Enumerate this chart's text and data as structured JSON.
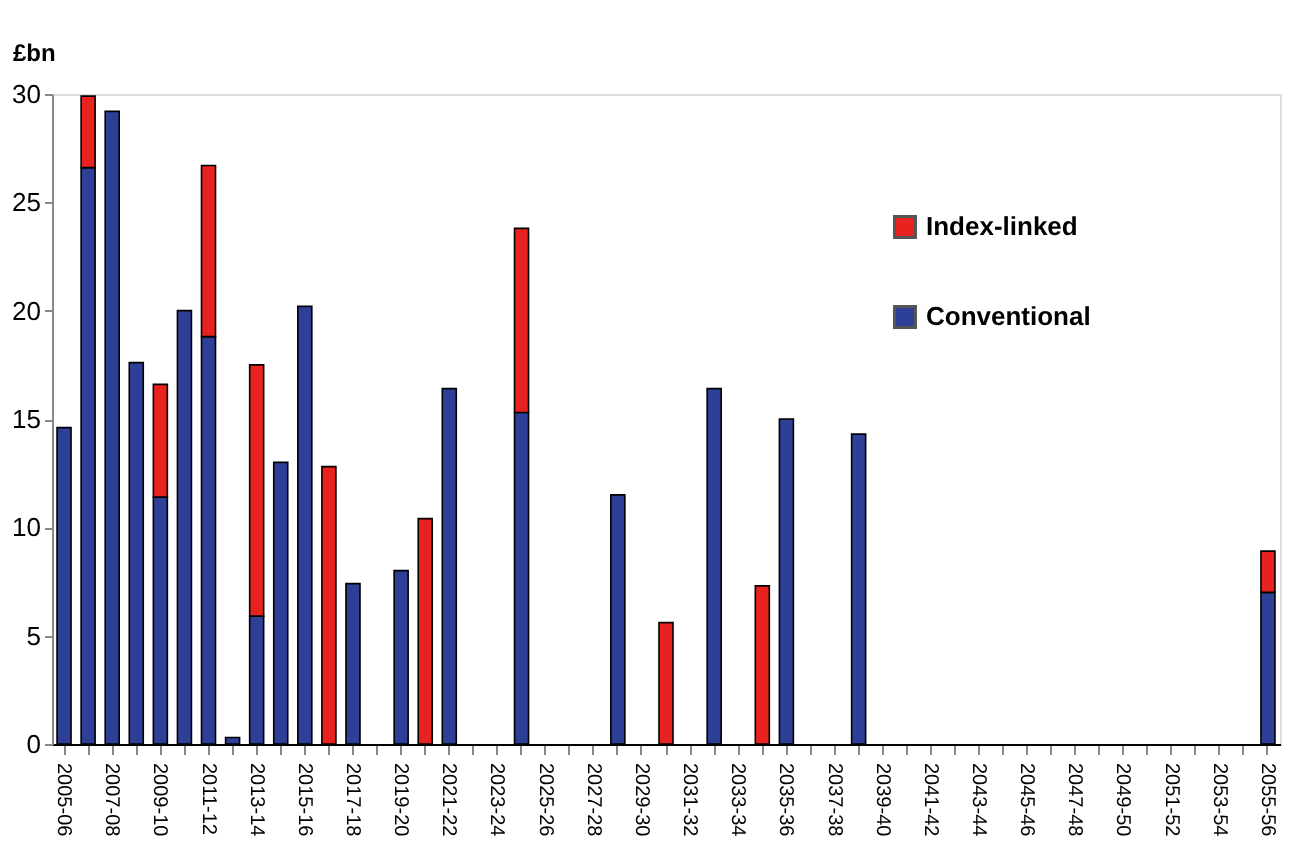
{
  "chart_data": {
    "type": "bar",
    "stacked": true,
    "ylabel": "£bn",
    "categories": [
      "2005-06",
      null,
      "2007-08",
      null,
      "2009-10",
      null,
      "2011-12",
      null,
      "2013-14",
      null,
      "2015-16",
      null,
      "2017-18",
      null,
      "2019-20",
      null,
      "2021-22",
      null,
      "2023-24",
      null,
      "2025-26",
      null,
      "2027-28",
      null,
      "2029-30",
      null,
      "2031-32",
      null,
      "2033-34",
      null,
      "2035-36",
      null,
      "2037-38",
      null,
      "2039-40",
      null,
      "2041-42",
      null,
      "2043-44",
      null,
      "2045-46",
      null,
      "2047-48",
      null,
      "2049-50",
      null,
      "2051-52",
      null,
      "2053-54",
      null,
      "2055-56"
    ],
    "series": [
      {
        "name": "Conventional",
        "color": "#2e3f98",
        "values": [
          14.6,
          26.6,
          29.2,
          17.6,
          11.4,
          20.0,
          18.8,
          0.3,
          5.9,
          13.0,
          20.2,
          null,
          7.4,
          null,
          8.0,
          null,
          16.4,
          null,
          null,
          15.3,
          null,
          null,
          null,
          11.5,
          null,
          null,
          null,
          16.4,
          null,
          null,
          15.0,
          null,
          null,
          14.3,
          null,
          null,
          null,
          null,
          null,
          null,
          null,
          null,
          null,
          null,
          null,
          null,
          null,
          null,
          null,
          null,
          7.0
        ]
      },
      {
        "name": "Index-linked",
        "color": "#e8231f",
        "values": [
          null,
          3.3,
          null,
          null,
          5.2,
          null,
          7.9,
          null,
          11.6,
          null,
          null,
          12.8,
          null,
          null,
          null,
          10.4,
          null,
          null,
          null,
          8.5,
          null,
          null,
          null,
          null,
          null,
          5.6,
          null,
          null,
          null,
          7.3,
          null,
          null,
          null,
          null,
          null,
          null,
          null,
          null,
          null,
          null,
          null,
          null,
          null,
          null,
          null,
          null,
          null,
          null,
          null,
          null,
          1.9
        ]
      }
    ],
    "ylim": [
      0,
      30
    ],
    "yticks": [
      0,
      5,
      10,
      15,
      20,
      25,
      30
    ],
    "grid": false,
    "legend": "top right"
  }
}
